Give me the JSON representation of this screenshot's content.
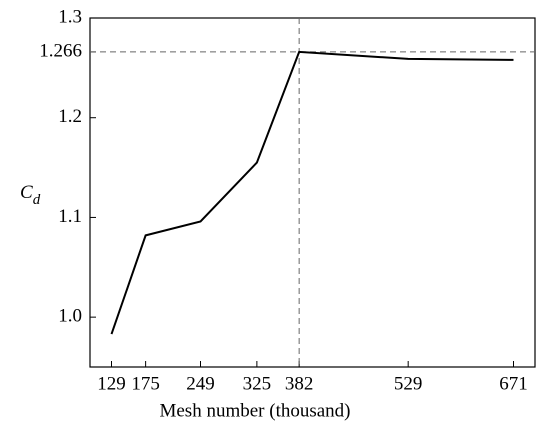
{
  "chart_data": {
    "type": "line",
    "x_label": "Mesh number (thousand)",
    "y_label": {
      "main": "C",
      "sub": "d"
    },
    "x": [
      129,
      175,
      249,
      325,
      382,
      529,
      671
    ],
    "values": [
      0.983,
      1.082,
      1.096,
      1.155,
      1.266,
      1.259,
      1.258
    ],
    "color": "#000000",
    "xlim": [
      100,
      700
    ],
    "xticks": [
      129,
      175,
      249,
      325,
      382,
      529,
      671
    ],
    "ylim": [
      0.95,
      1.3
    ],
    "yticks": [
      {
        "value": 1,
        "label": "1.0"
      },
      1.1,
      1.2,
      1.266,
      1.3
    ],
    "vline": 382,
    "hline": 1.266
  }
}
